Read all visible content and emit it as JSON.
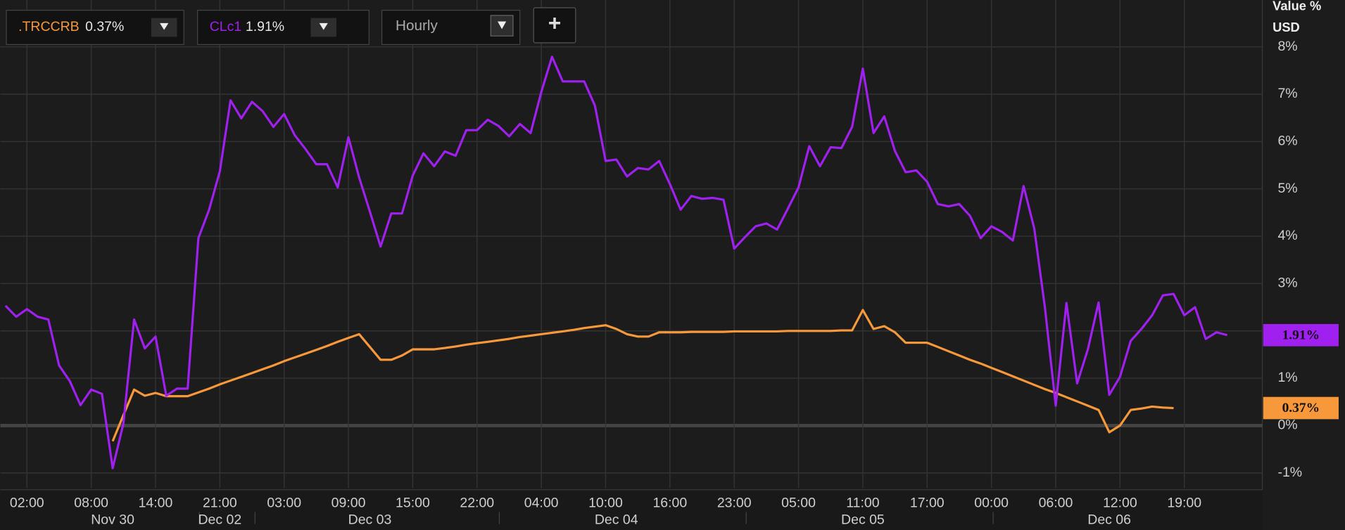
{
  "chart_data": {
    "type": "line",
    "interval": "Hourly",
    "add_button": "+",
    "y_label": "Value %",
    "y_unit": "USD",
    "grid": true,
    "ylim": [
      -1.32,
      8.99
    ],
    "yticks": [
      {
        "value": -1,
        "label": "-1%"
      },
      {
        "value": 0,
        "label": "0%"
      },
      {
        "value": 1,
        "label": "1%"
      },
      {
        "value": 2,
        "label": "2%"
      },
      {
        "value": 3,
        "label": "3%"
      },
      {
        "value": 4,
        "label": "4%"
      },
      {
        "value": 5,
        "label": "5%"
      },
      {
        "value": 6,
        "label": "6%"
      },
      {
        "value": 7,
        "label": "7%"
      },
      {
        "value": 8,
        "label": "8%"
      }
    ],
    "categories": [
      null,
      null,
      "02:00",
      null,
      null,
      null,
      null,
      null,
      "08:00",
      null,
      null,
      null,
      null,
      null,
      "14:00",
      null,
      null,
      null,
      null,
      null,
      "21:00",
      null,
      null,
      null,
      null,
      null,
      "03:00",
      null,
      null,
      null,
      null,
      null,
      "09:00",
      null,
      null,
      null,
      null,
      null,
      "15:00",
      null,
      null,
      null,
      null,
      null,
      "22:00",
      null,
      null,
      null,
      null,
      null,
      "04:00",
      null,
      null,
      null,
      null,
      null,
      "10:00",
      null,
      null,
      null,
      null,
      null,
      "16:00",
      null,
      null,
      null,
      null,
      null,
      "23:00",
      null,
      null,
      null,
      null,
      null,
      "05:00",
      null,
      null,
      null,
      null,
      null,
      "11:00",
      null,
      null,
      null,
      null,
      null,
      "17:00",
      null,
      null,
      null,
      null,
      null,
      "00:00",
      null,
      null,
      null,
      null,
      null,
      "06:00",
      null,
      null,
      null,
      null,
      null,
      "12:00",
      null,
      null,
      null,
      null,
      null,
      "19:00",
      null,
      null,
      null,
      null
    ],
    "date_labels": [
      null,
      null,
      null,
      null,
      null,
      null,
      null,
      null,
      null,
      null,
      "Nov 30",
      null,
      null,
      null,
      null,
      null,
      null,
      null,
      null,
      null,
      "Dec 02",
      null,
      null,
      null,
      null,
      null,
      null,
      null,
      null,
      null,
      null,
      null,
      null,
      null,
      "Dec 03",
      null,
      null,
      null,
      null,
      null,
      null,
      null,
      null,
      null,
      null,
      null,
      null,
      null,
      null,
      null,
      null,
      null,
      null,
      null,
      null,
      null,
      null,
      "Dec 04",
      null,
      null,
      null,
      null,
      null,
      null,
      null,
      null,
      null,
      null,
      null,
      null,
      null,
      null,
      null,
      null,
      null,
      null,
      null,
      null,
      null,
      null,
      "Dec 05",
      null,
      null,
      null,
      null,
      null,
      null,
      null,
      null,
      null,
      null,
      null,
      null,
      null,
      null,
      null,
      null,
      null,
      null,
      null,
      null,
      null,
      null,
      "Dec 06",
      null,
      null,
      null,
      null,
      null,
      null,
      null,
      null,
      null,
      null,
      null
    ],
    "series": [
      {
        "name": ".TRCCRB",
        "color": "#f7993a",
        "last_label": "0.37%",
        "values": [
          null,
          null,
          null,
          null,
          null,
          null,
          null,
          null,
          null,
          null,
          -0.33,
          0.22,
          0.76,
          0.63,
          0.69,
          0.62,
          0.62,
          0.62,
          0.7,
          0.78,
          0.87,
          0.95,
          1.03,
          1.11,
          1.19,
          1.27,
          1.36,
          1.44,
          1.52,
          1.6,
          1.68,
          1.77,
          1.85,
          1.93,
          1.66,
          1.39,
          1.39,
          1.48,
          1.61,
          1.61,
          1.61,
          1.64,
          1.67,
          1.71,
          1.74,
          1.77,
          1.8,
          1.83,
          1.87,
          1.9,
          1.93,
          1.96,
          1.99,
          2.02,
          2.06,
          2.09,
          2.12,
          2.04,
          1.93,
          1.88,
          1.88,
          1.97,
          1.97,
          1.97,
          1.98,
          1.98,
          1.98,
          1.98,
          1.99,
          1.99,
          1.99,
          1.99,
          1.99,
          2.0,
          2.0,
          2.0,
          2.0,
          2.0,
          2.01,
          2.01,
          2.44,
          2.04,
          2.1,
          1.97,
          1.75,
          1.75,
          1.75,
          1.66,
          1.57,
          1.48,
          1.39,
          1.31,
          1.22,
          1.13,
          1.04,
          0.95,
          0.86,
          0.77,
          0.69,
          0.6,
          0.51,
          0.42,
          0.33,
          -0.14,
          0.0,
          0.33,
          0.36,
          0.4,
          0.38,
          0.37,
          null,
          null,
          null,
          null,
          null
        ]
      },
      {
        "name": "CLc1",
        "color": "#a020f0",
        "last_label": "1.91%",
        "values": [
          2.53,
          2.3,
          2.46,
          2.3,
          2.24,
          1.27,
          0.94,
          0.43,
          0.76,
          0.67,
          -0.9,
          0.04,
          2.24,
          1.63,
          1.88,
          0.63,
          0.78,
          0.78,
          3.96,
          4.56,
          5.37,
          6.87,
          6.49,
          6.84,
          6.64,
          6.31,
          6.58,
          6.13,
          5.84,
          5.52,
          5.52,
          5.03,
          6.09,
          5.24,
          4.52,
          3.78,
          4.48,
          4.48,
          5.28,
          5.75,
          5.48,
          5.79,
          5.7,
          6.24,
          6.24,
          6.46,
          6.33,
          6.11,
          6.37,
          6.18,
          7.05,
          7.79,
          7.27,
          7.27,
          7.27,
          6.76,
          5.59,
          5.62,
          5.26,
          5.44,
          5.41,
          5.59,
          5.1,
          4.56,
          4.85,
          4.79,
          4.81,
          4.77,
          3.74,
          3.98,
          4.21,
          4.27,
          4.14,
          4.58,
          5.03,
          5.9,
          5.48,
          5.88,
          5.86,
          6.31,
          7.54,
          6.18,
          6.53,
          5.8,
          5.35,
          5.39,
          5.15,
          4.68,
          4.63,
          4.68,
          4.43,
          3.96,
          4.21,
          4.09,
          3.91,
          5.06,
          4.16,
          2.48,
          0.42,
          2.59,
          0.89,
          1.61,
          2.6,
          0.65,
          1.03,
          1.79,
          2.04,
          2.33,
          2.75,
          2.78,
          2.33,
          2.5,
          1.83,
          1.97,
          1.91
        ]
      }
    ]
  }
}
